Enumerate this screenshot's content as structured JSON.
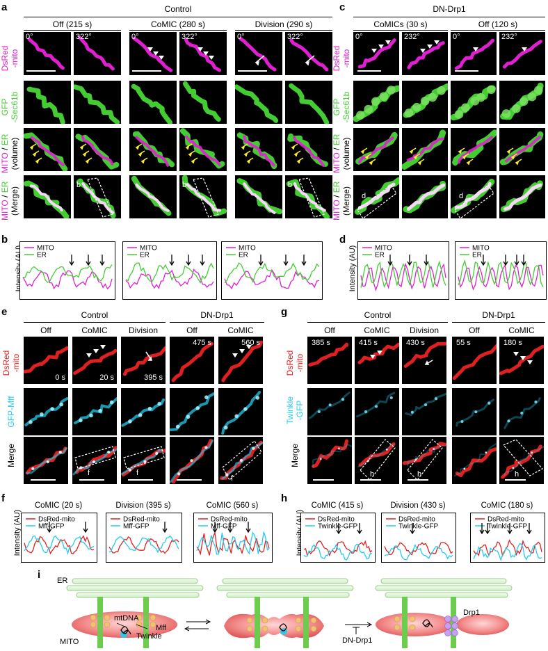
{
  "panel_letters": {
    "a": "a",
    "b": "b",
    "c": "c",
    "d": "d",
    "e": "e",
    "f": "f",
    "g": "g",
    "h": "h",
    "i": "i"
  },
  "panel_a": {
    "group": "Control",
    "conditions": [
      "Off (215 s)",
      "CoMIC (280 s)",
      "Division (290 s)"
    ],
    "angles": [
      "0°",
      "322°"
    ],
    "rows": [
      "DsRed\n-mito",
      "GFP\n-Sec61b",
      "MITO / ER\n(volume)",
      "MITO / ER\n(Merge)"
    ],
    "row_labels_top": [
      "DsRed",
      "GFP",
      "MITO / ER",
      "MITO / ER"
    ],
    "row_labels_bottom": [
      "-mito",
      "-Sec61b",
      "(volume)",
      "(Merge)"
    ],
    "box_label": "b"
  },
  "panel_b": {
    "ylabel": "Intensity (AU)",
    "legend": [
      "MITO",
      "ER"
    ],
    "colors": {
      "mito": "#e020d0",
      "er": "#44cc33"
    }
  },
  "panel_c": {
    "group": "DN-Drp1",
    "conditions": [
      "CoMICs (30 s)",
      "Off (120 s)"
    ],
    "angles": [
      "0°",
      "232°"
    ],
    "row_labels_top": [
      "DsRed",
      "GFP",
      "MITO / ER",
      "MITO / ER"
    ],
    "row_labels_bottom": [
      "-mito",
      "-Sec61b",
      "(volume)",
      "(Merge)"
    ],
    "box_label": "d"
  },
  "panel_d": {
    "ylabel": "Intensity (AU)",
    "legend": [
      "MITO",
      "ER"
    ]
  },
  "panel_e": {
    "group1": "Control",
    "group2": "DN-Drp1",
    "columns": [
      "Off",
      "CoMIC",
      "Division",
      "Off",
      "CoMIC"
    ],
    "times": [
      "0 s",
      "20 s",
      "395 s",
      "475 s",
      "560 s"
    ],
    "row_labels_top": [
      "DsRed",
      "GFP-Mff",
      "Merge"
    ],
    "row_labels_bottom": [
      "-mito",
      "",
      ""
    ],
    "box_label": "f"
  },
  "panel_f": {
    "ylabel": "Intensity (AU)",
    "titles": [
      "CoMIC (20 s)",
      "Division (395 s)",
      "CoMIC (560 s)"
    ],
    "legend": [
      "DsRed-mito",
      "Mff-GFP"
    ],
    "colors": {
      "red": "#e02020",
      "cyan": "#22ccee"
    }
  },
  "panel_g": {
    "group1": "Control",
    "group2": "DN-Drp1",
    "columns": [
      "Off",
      "CoMIC",
      "Division",
      "Off",
      "CoMIC"
    ],
    "times": [
      "385 s",
      "415 s",
      "430 s",
      "55 s",
      "180 s"
    ],
    "row_labels_top": [
      "DsRed",
      "Twinkle",
      "Merge"
    ],
    "row_labels_bottom": [
      "-mito",
      "-GFP",
      ""
    ],
    "box_label": "h"
  },
  "panel_h": {
    "ylabel": "Intensity (AU)",
    "titles": [
      "CoMIC (415 s)",
      "Division (430 s)",
      "CoMIC (180 s)"
    ],
    "legend": [
      "DsRed-mito",
      "Twinkle-GFP"
    ]
  },
  "panel_i": {
    "labels": {
      "er": "ER",
      "mito": "MITO",
      "mtdna": "mtDNA",
      "mff": "Mff",
      "twinkle": "Twinkle",
      "drp1": "Drp1",
      "dndrp1": "DN-Drp1"
    }
  }
}
